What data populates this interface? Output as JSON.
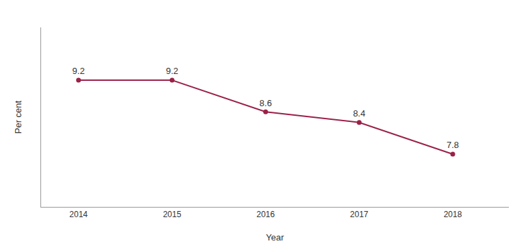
{
  "chart_data": {
    "type": "line",
    "x": [
      2014,
      2015,
      2016,
      2017,
      2018
    ],
    "values": [
      9.2,
      9.2,
      8.6,
      8.4,
      7.8
    ],
    "color": "#9b2147",
    "marker": "circle",
    "line_style": "solid",
    "data_labels": true,
    "xlabel": "Year",
    "ylabel": "Per cent",
    "xlim": [
      2013.6,
      2018.6
    ],
    "xticks": [
      2014,
      2015,
      2016,
      2017,
      2018
    ],
    "ylim": [
      6.8,
      10.2
    ],
    "tick_labels": "x",
    "grid": false
  }
}
